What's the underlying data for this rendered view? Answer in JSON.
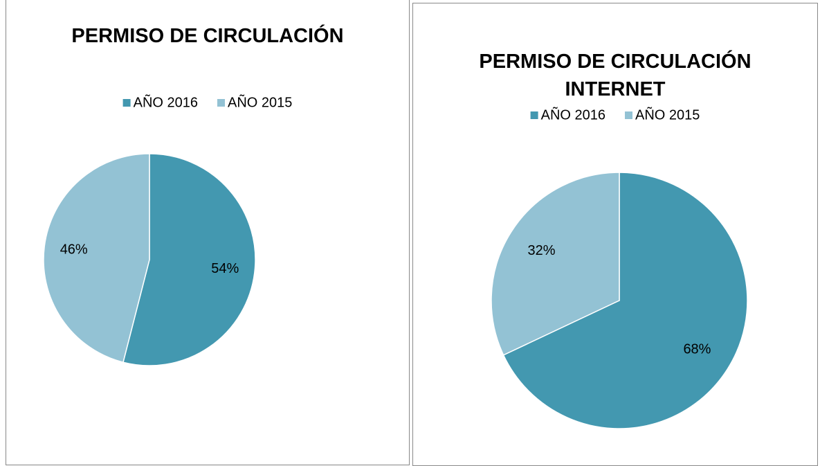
{
  "chart_data": [
    {
      "type": "pie",
      "title": "PERMISO DE CIRCULACIÓN",
      "categories": [
        "AÑO 2016",
        "AÑO 2015"
      ],
      "values": [
        54,
        46
      ],
      "value_labels": [
        "54%",
        "46%"
      ],
      "colors": [
        "#4398b0",
        "#93c2d4"
      ],
      "legend": "top"
    },
    {
      "type": "pie",
      "title": "PERMISO DE CIRCULACIÓN INTERNET",
      "categories": [
        "AÑO 2016",
        "AÑO 2015"
      ],
      "values": [
        68,
        32
      ],
      "value_labels": [
        "68%",
        "32%"
      ],
      "colors": [
        "#4398b0",
        "#93c2d4"
      ],
      "legend": "top"
    }
  ]
}
